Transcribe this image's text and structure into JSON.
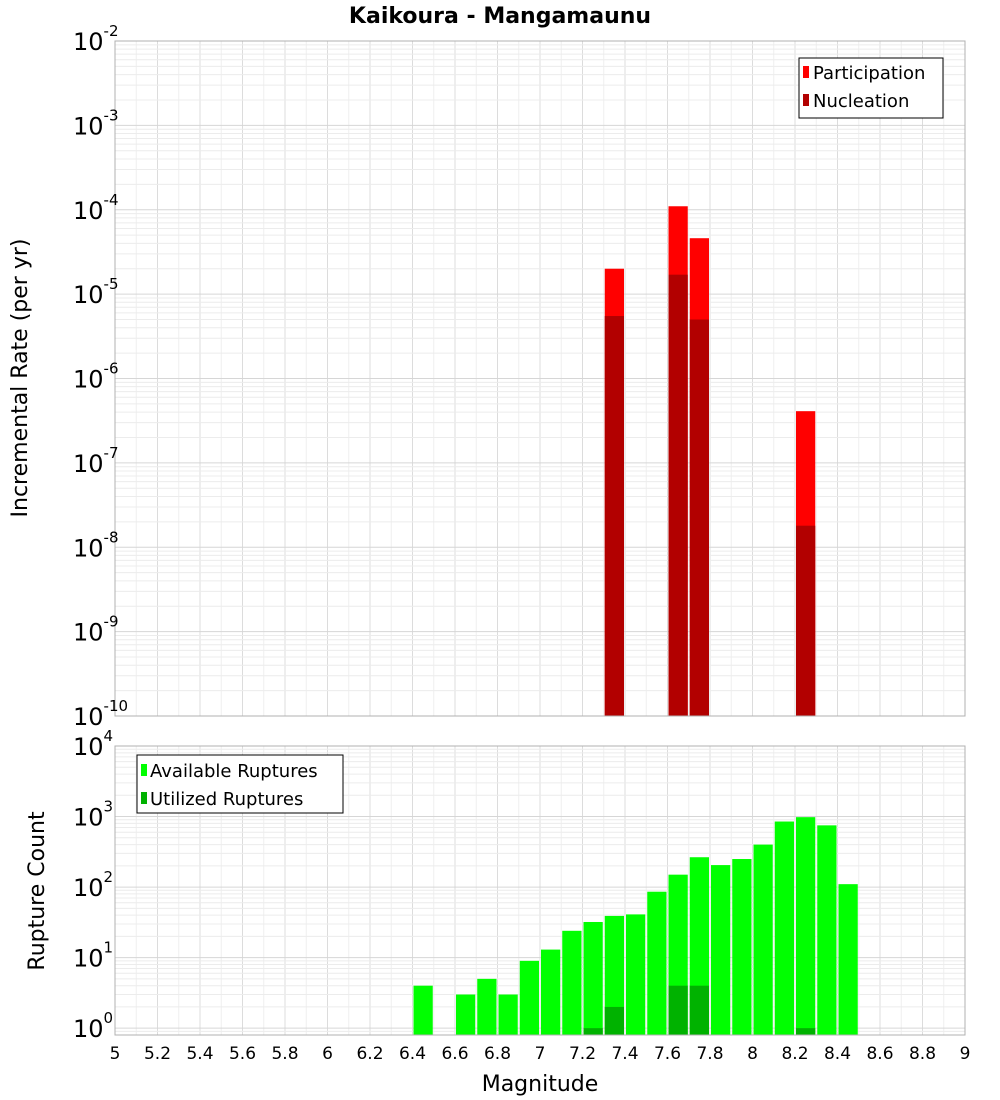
{
  "chart_data": [
    {
      "type": "bar",
      "title": "Kaikoura - Mangamaunu",
      "xlabel": "",
      "ylabel": "Incremental Rate (per yr)",
      "xlim": [
        5,
        9
      ],
      "ylim": [
        1e-10,
        0.01
      ],
      "yscale": "log",
      "bin_width": 0.1,
      "grid": true,
      "legend_position": "top-right",
      "series": [
        {
          "name": "Participation",
          "color": "#ff0000",
          "x": [
            7.35,
            7.65,
            7.75,
            8.25
          ],
          "values": [
            2e-05,
            0.00011,
            4.6e-05,
            4.1e-07
          ]
        },
        {
          "name": "Nucleation",
          "color": "#b20000",
          "x": [
            7.35,
            7.65,
            7.75,
            8.25
          ],
          "values": [
            5.5e-06,
            1.7e-05,
            5e-06,
            1.8e-08
          ]
        }
      ]
    },
    {
      "type": "bar",
      "title": "",
      "xlabel": "Magnitude",
      "ylabel": "Rupture Count",
      "xlim": [
        5,
        9
      ],
      "ylim": [
        0.8,
        10000
      ],
      "yscale": "log",
      "bin_width": 0.1,
      "grid": true,
      "legend_position": "top-left",
      "xticks": [
        "5",
        "5.2",
        "5.4",
        "5.6",
        "5.8",
        "6",
        "6.2",
        "6.4",
        "6.6",
        "6.8",
        "7",
        "7.2",
        "7.4",
        "7.6",
        "7.8",
        "8",
        "8.2",
        "8.4",
        "8.6",
        "8.8",
        "9"
      ],
      "series": [
        {
          "name": "Available Ruptures",
          "color": "#00ff00",
          "x": [
            6.45,
            6.65,
            6.75,
            6.85,
            6.95,
            7.05,
            7.15,
            7.25,
            7.35,
            7.45,
            7.55,
            7.65,
            7.75,
            7.85,
            7.95,
            8.05,
            8.15,
            8.25,
            8.35,
            8.45
          ],
          "values": [
            4,
            3,
            5,
            3,
            9,
            13,
            24,
            32,
            39,
            41,
            86,
            150,
            265,
            205,
            250,
            400,
            850,
            980,
            750,
            110
          ]
        },
        {
          "name": "Utilized Ruptures",
          "color": "#00b200",
          "x": [
            7.25,
            7.35,
            7.65,
            7.75,
            8.25
          ],
          "values": [
            1,
            2,
            4,
            4,
            1
          ]
        }
      ]
    }
  ]
}
